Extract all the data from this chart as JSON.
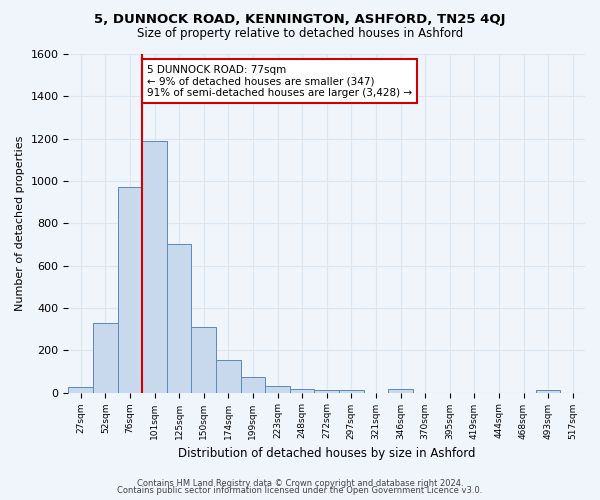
{
  "title": "5, DUNNOCK ROAD, KENNINGTON, ASHFORD, TN25 4QJ",
  "subtitle": "Size of property relative to detached houses in Ashford",
  "xlabel": "Distribution of detached houses by size in Ashford",
  "ylabel": "Number of detached properties",
  "footnote1": "Contains HM Land Registry data © Crown copyright and database right 2024.",
  "footnote2": "Contains public sector information licensed under the Open Government Licence v3.0.",
  "bin_labels": [
    "27sqm",
    "52sqm",
    "76sqm",
    "101sqm",
    "125sqm",
    "150sqm",
    "174sqm",
    "199sqm",
    "223sqm",
    "248sqm",
    "272sqm",
    "297sqm",
    "321sqm",
    "346sqm",
    "370sqm",
    "395sqm",
    "419sqm",
    "444sqm",
    "468sqm",
    "493sqm",
    "517sqm"
  ],
  "bar_values": [
    25,
    330,
    970,
    1190,
    700,
    310,
    155,
    75,
    30,
    15,
    10,
    10,
    0,
    15,
    0,
    0,
    0,
    0,
    0,
    10,
    0
  ],
  "bar_color": "#c9d9ed",
  "bar_edge_color": "#5a8ab8",
  "grid_color": "#dce6f0",
  "background_color": "#f0f4fb",
  "vline_color": "#cc0000",
  "annotation_text": "5 DUNNOCK ROAD: 77sqm\n← 9% of detached houses are smaller (347)\n91% of semi-detached houses are larger (3,428) →",
  "annotation_box_color": "#ffffff",
  "annotation_border_color": "#cc0000",
  "ylim": [
    0,
    1600
  ],
  "yticks": [
    0,
    200,
    400,
    600,
    800,
    1000,
    1200,
    1400,
    1600
  ]
}
